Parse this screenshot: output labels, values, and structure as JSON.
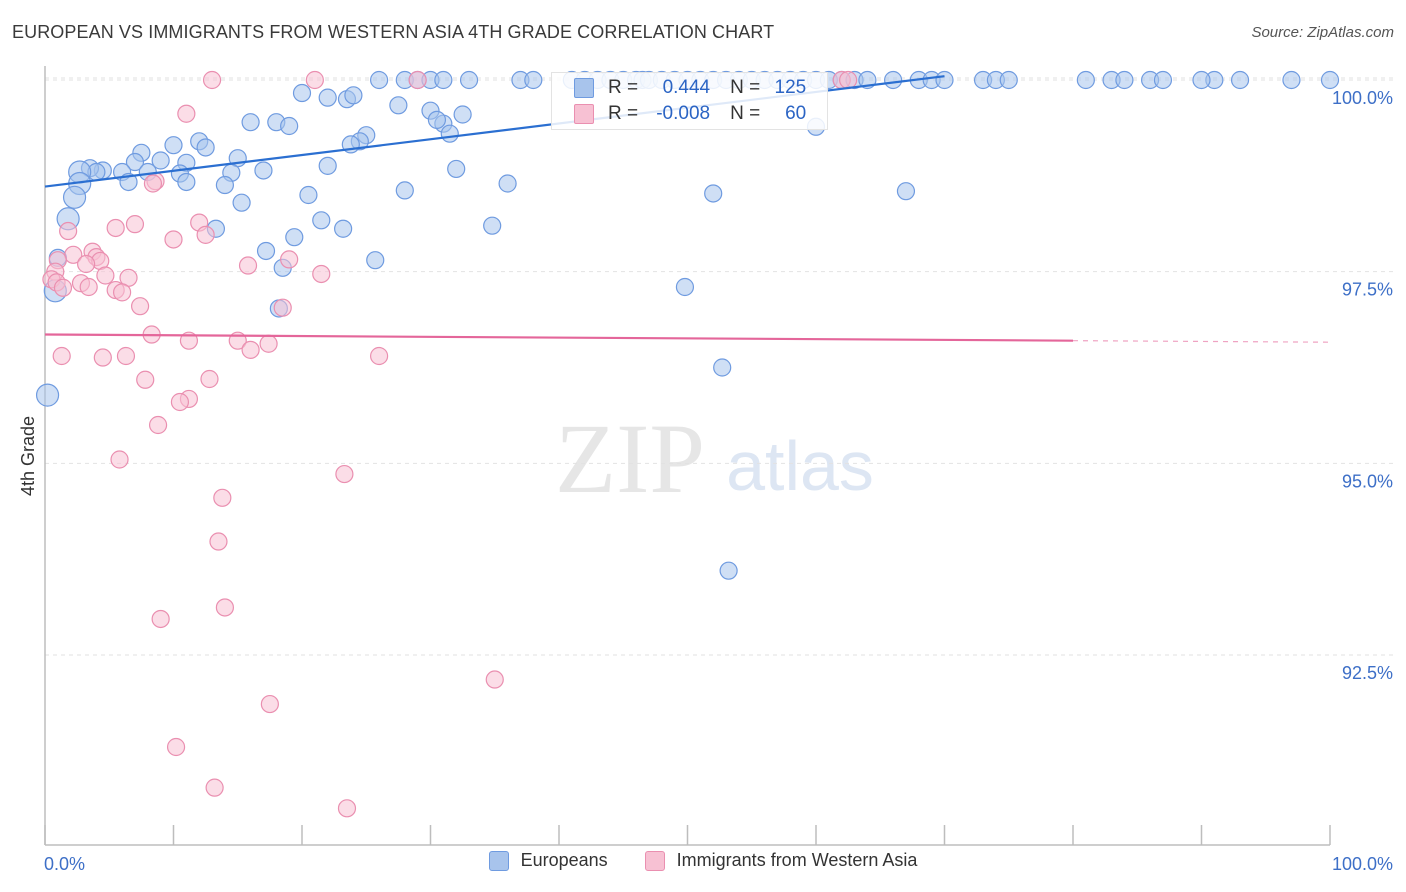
{
  "title": "EUROPEAN VS IMMIGRANTS FROM WESTERN ASIA 4TH GRADE CORRELATION CHART",
  "source": "Source: ZipAtlas.com",
  "watermark": {
    "zip": "ZIP",
    "atlas": "atlas"
  },
  "stats": [
    {
      "r_label": "R =",
      "r_value": "0.444",
      "n_label": "N =",
      "n_value": "125",
      "color": "#a8c4ec",
      "stroke": "#6f9be0"
    },
    {
      "r_label": "R =",
      "r_value": "-0.008",
      "n_label": "N =",
      "n_value": "60",
      "color": "#f7c1d3",
      "stroke": "#ea8fb0"
    }
  ],
  "legend": [
    {
      "label": "Europeans",
      "color": "#a8c4ec",
      "stroke": "#6f9be0"
    },
    {
      "label": "Immigrants from Western Asia",
      "color": "#f7c1d3",
      "stroke": "#ea8fb0"
    }
  ],
  "chart_data": {
    "type": "scatter",
    "title": "EUROPEAN VS IMMIGRANTS FROM WESTERN ASIA 4TH GRADE CORRELATION CHART",
    "xlabel": "",
    "ylabel": "4th Grade",
    "xlim": [
      0,
      100
    ],
    "ylim": [
      90.2,
      100.4
    ],
    "x_tick_labels": [
      "0.0%",
      "100.0%"
    ],
    "y_ticks": [
      92.5,
      95.0,
      97.5,
      100.0
    ],
    "y_tick_labels": [
      "92.5%",
      "95.0%",
      "97.5%",
      "100.0%"
    ],
    "grid": true,
    "series": [
      {
        "name": "Europeans",
        "color": "#6f9be0",
        "fill": "#a8c4ec",
        "trend": {
          "x": [
            0,
            70
          ],
          "y": [
            98.61,
            100.05
          ],
          "color": "#2b6fd1"
        },
        "points": [
          [
            26,
            100
          ],
          [
            28,
            100
          ],
          [
            29,
            100
          ],
          [
            30,
            100
          ],
          [
            33,
            100
          ],
          [
            37,
            100
          ],
          [
            38,
            100
          ],
          [
            41,
            100
          ],
          [
            42,
            100
          ],
          [
            43,
            100
          ],
          [
            44,
            100
          ],
          [
            45,
            100
          ],
          [
            46,
            100
          ],
          [
            46.5,
            100
          ],
          [
            47,
            100
          ],
          [
            48,
            100
          ],
          [
            49,
            100
          ],
          [
            50,
            100
          ],
          [
            51,
            100
          ],
          [
            52,
            100
          ],
          [
            53,
            100
          ],
          [
            54,
            100
          ],
          [
            55,
            100
          ],
          [
            56,
            100
          ],
          [
            57,
            100
          ],
          [
            58,
            100
          ],
          [
            59,
            100
          ],
          [
            60,
            100
          ],
          [
            61,
            100
          ],
          [
            62,
            100
          ],
          [
            63,
            100
          ],
          [
            64,
            100
          ],
          [
            66,
            100
          ],
          [
            68,
            100
          ],
          [
            69,
            100
          ],
          [
            70,
            100
          ],
          [
            73,
            100
          ],
          [
            74,
            100
          ],
          [
            75,
            100
          ],
          [
            81,
            100
          ],
          [
            83,
            100
          ],
          [
            84,
            100
          ],
          [
            86,
            100
          ],
          [
            87,
            100
          ],
          [
            91,
            100
          ],
          [
            93,
            100
          ],
          [
            97,
            100
          ],
          [
            100,
            100
          ],
          [
            90,
            100
          ],
          [
            31,
            100
          ],
          [
            20,
            99.83
          ],
          [
            22,
            99.77
          ],
          [
            23.5,
            99.75
          ],
          [
            24,
            99.8
          ],
          [
            27.5,
            99.67
          ],
          [
            30,
            99.6
          ],
          [
            31,
            99.43
          ],
          [
            32.5,
            99.55
          ],
          [
            16,
            99.45
          ],
          [
            18,
            99.45
          ],
          [
            19,
            99.4
          ],
          [
            30.5,
            99.48
          ],
          [
            31.5,
            99.3
          ],
          [
            60,
            99.39
          ],
          [
            12,
            99.2
          ],
          [
            10,
            99.15
          ],
          [
            12.5,
            99.12
          ],
          [
            25,
            99.28
          ],
          [
            24.5,
            99.2
          ],
          [
            23.8,
            99.16
          ],
          [
            7.5,
            99.05
          ],
          [
            9,
            98.95
          ],
          [
            7,
            98.93
          ],
          [
            11,
            98.92
          ],
          [
            15,
            98.98
          ],
          [
            17,
            98.82
          ],
          [
            14.5,
            98.79
          ],
          [
            10.5,
            98.78
          ],
          [
            8,
            98.8
          ],
          [
            6,
            98.8
          ],
          [
            4.5,
            98.82
          ],
          [
            3.5,
            98.85
          ],
          [
            4,
            98.8
          ],
          [
            2.7,
            98.8
          ],
          [
            22,
            98.88
          ],
          [
            32,
            98.84
          ],
          [
            14,
            98.63
          ],
          [
            11,
            98.67
          ],
          [
            6.5,
            98.67
          ],
          [
            2.7,
            98.65
          ],
          [
            28,
            98.56
          ],
          [
            36,
            98.65
          ],
          [
            52,
            98.52
          ],
          [
            67,
            98.55
          ],
          [
            20.5,
            98.5
          ],
          [
            15.3,
            98.4
          ],
          [
            2.3,
            98.47
          ],
          [
            21.5,
            98.17
          ],
          [
            34.8,
            98.1
          ],
          [
            23.2,
            98.06
          ],
          [
            13.3,
            98.06
          ],
          [
            1.8,
            98.19
          ],
          [
            19.4,
            97.95
          ],
          [
            17.2,
            97.77
          ],
          [
            25.7,
            97.65
          ],
          [
            18.5,
            97.55
          ],
          [
            1,
            97.68
          ],
          [
            49.8,
            97.3
          ],
          [
            18.2,
            97.02
          ],
          [
            0.8,
            97.25
          ],
          [
            52.7,
            96.25
          ],
          [
            0.2,
            95.89
          ],
          [
            53.2,
            93.6
          ]
        ]
      },
      {
        "name": "Immigrants from Western Asia",
        "color": "#ea8fb0",
        "fill": "#f7c1d3",
        "trend": {
          "x": [
            0,
            80
          ],
          "y": [
            96.68,
            96.6
          ],
          "dashed_to": 100,
          "dashed_y": 96.58,
          "color": "#e4669a"
        },
        "points": [
          [
            13,
            100
          ],
          [
            21,
            100
          ],
          [
            29,
            100
          ],
          [
            62,
            100
          ],
          [
            62.5,
            100
          ],
          [
            11,
            99.56
          ],
          [
            8.6,
            98.68
          ],
          [
            8.4,
            98.65
          ],
          [
            7,
            98.12
          ],
          [
            5.5,
            98.07
          ],
          [
            12,
            98.14
          ],
          [
            12.5,
            97.98
          ],
          [
            10,
            97.92
          ],
          [
            1.8,
            98.03
          ],
          [
            2.2,
            97.72
          ],
          [
            3.7,
            97.76
          ],
          [
            4,
            97.69
          ],
          [
            4.3,
            97.64
          ],
          [
            3.2,
            97.6
          ],
          [
            1,
            97.65
          ],
          [
            0.8,
            97.5
          ],
          [
            0.5,
            97.4
          ],
          [
            0.9,
            97.36
          ],
          [
            1.4,
            97.29
          ],
          [
            2.8,
            97.35
          ],
          [
            3.4,
            97.3
          ],
          [
            4.7,
            97.45
          ],
          [
            6.5,
            97.42
          ],
          [
            5.5,
            97.26
          ],
          [
            6,
            97.23
          ],
          [
            7.4,
            97.05
          ],
          [
            15.8,
            97.58
          ],
          [
            19,
            97.66
          ],
          [
            21.5,
            97.47
          ],
          [
            18.5,
            97.03
          ],
          [
            8.3,
            96.68
          ],
          [
            11.2,
            96.6
          ],
          [
            15,
            96.6
          ],
          [
            16,
            96.48
          ],
          [
            17.4,
            96.56
          ],
          [
            1.3,
            96.4
          ],
          [
            4.5,
            96.38
          ],
          [
            6.3,
            96.4
          ],
          [
            26,
            96.4
          ],
          [
            7.8,
            96.09
          ],
          [
            12.8,
            96.1
          ],
          [
            11.2,
            95.84
          ],
          [
            10.5,
            95.8
          ],
          [
            8.8,
            95.5
          ],
          [
            5.8,
            95.05
          ],
          [
            23.3,
            94.86
          ],
          [
            13.8,
            94.55
          ],
          [
            13.5,
            93.98
          ],
          [
            14,
            93.12
          ],
          [
            9,
            92.97
          ],
          [
            35,
            92.18
          ],
          [
            17.5,
            91.86
          ],
          [
            10.2,
            91.3
          ],
          [
            13.2,
            90.77
          ],
          [
            23.5,
            90.5
          ]
        ]
      }
    ]
  }
}
